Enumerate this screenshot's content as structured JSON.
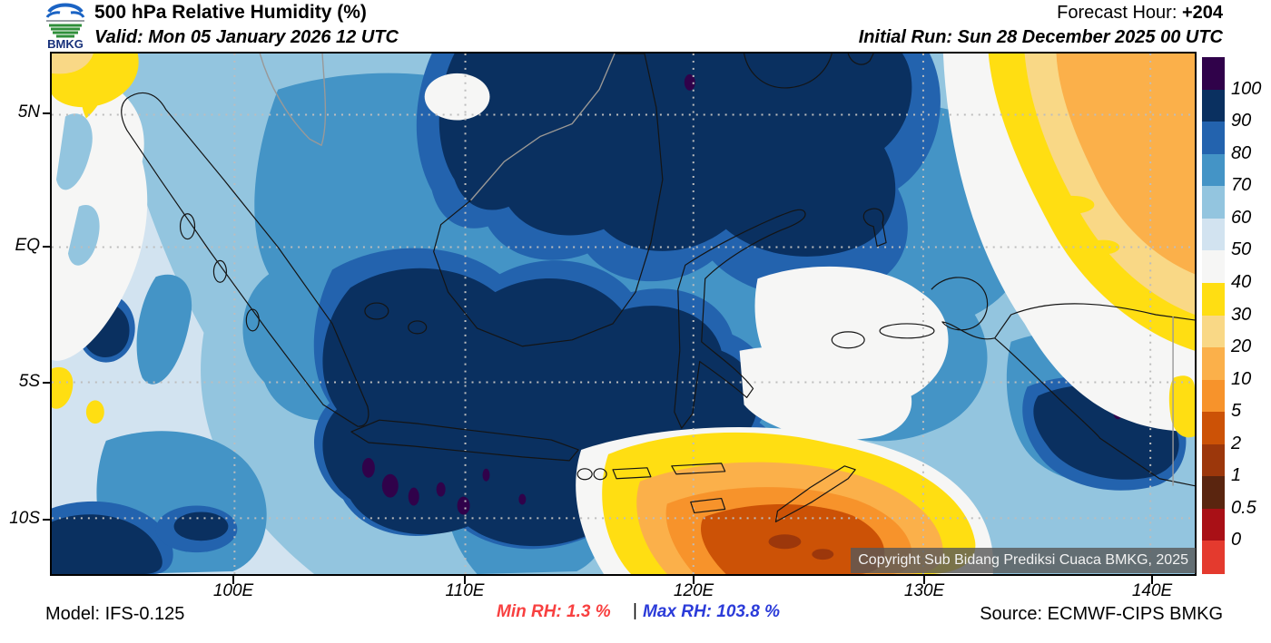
{
  "header": {
    "logo_text": "BMKG",
    "title": "500 hPa Relative Humidity (%)",
    "valid_line": "Valid: Mon 05 January 2026 12 UTC",
    "forecast_hour_label": "Forecast Hour: ",
    "forecast_hour_value": "+204",
    "initial_run_line": "Initial Run: Sun 28 December 2025 00 UTC"
  },
  "map": {
    "lat_labels": [
      "5N",
      "EQ",
      "5S",
      "10S"
    ],
    "lon_labels": [
      "100E",
      "110E",
      "120E",
      "130E",
      "140E"
    ],
    "copyright": "Copyright Sub Bidang Prediksi Cuaca BMKG, 2025"
  },
  "colorbar": {
    "unit": "%",
    "tick_labels": [
      "100",
      "90",
      "80",
      "70",
      "60",
      "50",
      "40",
      "30",
      "20",
      "10",
      "5",
      "2",
      "1",
      "0.5",
      "0"
    ],
    "segment_colors_top_to_bottom": [
      "#30024A",
      "#0A3060",
      "#2363AE",
      "#4494C6",
      "#93C5DF",
      "#D2E3F0",
      "#F6F6F5",
      "#FFDE12",
      "#F9D886",
      "#FBB04A",
      "#F7932B",
      "#CC5206",
      "#9C370B",
      "#5A250F",
      "#A91016",
      "#E43A2E"
    ]
  },
  "footer": {
    "model": "Model: IFS-0.125",
    "min_rh": "Min RH:   1.3 %",
    "separator": "|",
    "max_rh": "Max RH: 103.8 %",
    "source": "Source: ECMWF-CIPS BMKG"
  }
}
